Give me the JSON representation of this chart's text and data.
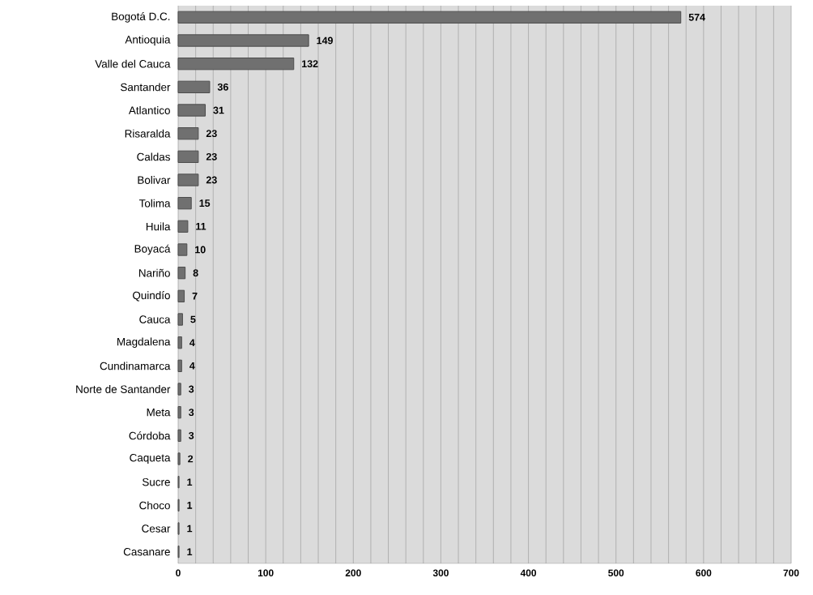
{
  "chart_data": {
    "type": "bar",
    "orientation": "horizontal",
    "categories": [
      "Bogotá D.C.",
      "Antioquia",
      "Valle del Cauca",
      "Santander",
      "Atlantico",
      "Risaralda",
      "Caldas",
      "Bolivar",
      "Tolima",
      "Huila",
      "Boyacá",
      "Nariño",
      "Quindío",
      "Cauca",
      "Magdalena",
      "Cundinamarca",
      "Norte de Santander",
      "Meta",
      "Córdoba",
      "Caqueta",
      "Sucre",
      "Choco",
      "Cesar",
      "Casanare"
    ],
    "values": [
      574,
      149,
      132,
      36,
      31,
      23,
      23,
      23,
      15,
      11,
      10,
      8,
      7,
      5,
      4,
      4,
      3,
      3,
      3,
      2,
      1,
      1,
      1,
      1
    ],
    "color": "#707070",
    "data_labels": true,
    "grid": "x",
    "xlim": [
      0,
      700
    ],
    "xticks": [
      0,
      {
        "value": 20,
        "label": null
      },
      {
        "value": 40,
        "label": null
      },
      {
        "value": 60,
        "label": null
      },
      {
        "value": 80,
        "label": null
      },
      100,
      {
        "value": 120,
        "label": null
      },
      {
        "value": 140,
        "label": null
      },
      {
        "value": 160,
        "label": null
      },
      {
        "value": 180,
        "label": null
      },
      200,
      {
        "value": 220,
        "label": null
      },
      {
        "value": 240,
        "label": null
      },
      {
        "value": 260,
        "label": null
      },
      {
        "value": 280,
        "label": null
      },
      300,
      {
        "value": 320,
        "label": null
      },
      {
        "value": 340,
        "label": null
      },
      {
        "value": 360,
        "label": null
      },
      {
        "value": 380,
        "label": null
      },
      400,
      {
        "value": 420,
        "label": null
      },
      {
        "value": 440,
        "label": null
      },
      {
        "value": 460,
        "label": null
      },
      {
        "value": 480,
        "label": null
      },
      500,
      {
        "value": 520,
        "label": null
      },
      {
        "value": 540,
        "label": null
      },
      {
        "value": 560,
        "label": null
      },
      {
        "value": 580,
        "label": null
      },
      600,
      {
        "value": 620,
        "label": null
      },
      {
        "value": 640,
        "label": null
      },
      {
        "value": 660,
        "label": null
      },
      {
        "value": 680,
        "label": null
      },
      700
    ]
  }
}
